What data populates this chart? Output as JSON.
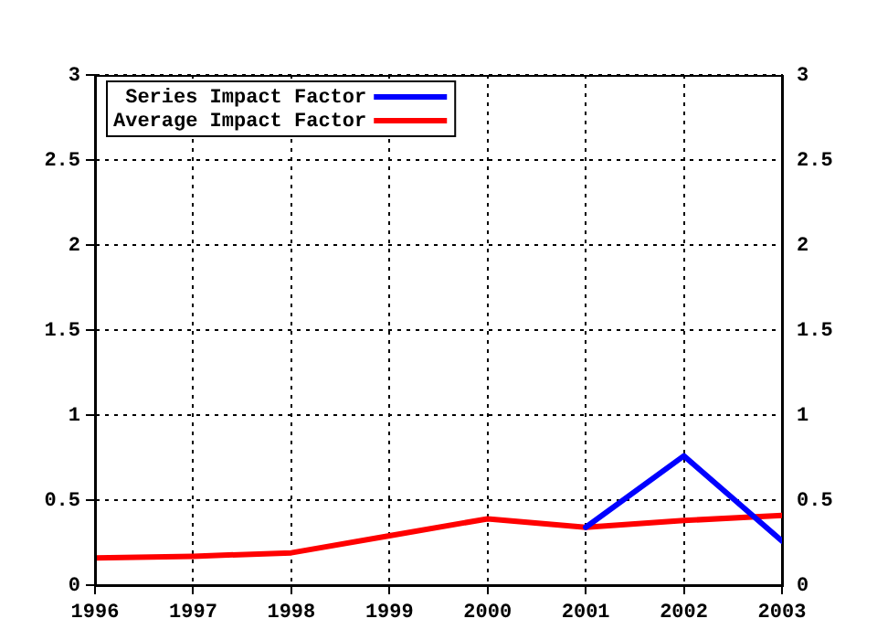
{
  "chart_data": {
    "type": "line",
    "x": [
      1996,
      1997,
      1998,
      1999,
      2000,
      2001,
      2002,
      2003
    ],
    "series": [
      {
        "name": "Series Impact Factor",
        "color": "#0000ff",
        "values": [
          null,
          null,
          null,
          null,
          null,
          0.34,
          0.76,
          0.26
        ]
      },
      {
        "name": "Average Impact Factor",
        "color": "#ff0000",
        "values": [
          0.16,
          0.17,
          0.19,
          0.29,
          0.39,
          0.34,
          0.38,
          0.41
        ]
      }
    ],
    "xlim": [
      1996,
      2003
    ],
    "xticks": [
      1996,
      1997,
      1998,
      1999,
      2000,
      2001,
      2002,
      2003
    ],
    "ylim": [
      0,
      3
    ],
    "yticks": [
      0,
      0.5,
      1,
      1.5,
      2,
      2.5,
      3
    ],
    "y2lim": [
      0,
      3
    ],
    "y2ticks": [
      0,
      0.5,
      1,
      1.5,
      2,
      2.5,
      3
    ],
    "grid": true,
    "legend": "top left",
    "marker": "none",
    "line_style": "solid"
  }
}
